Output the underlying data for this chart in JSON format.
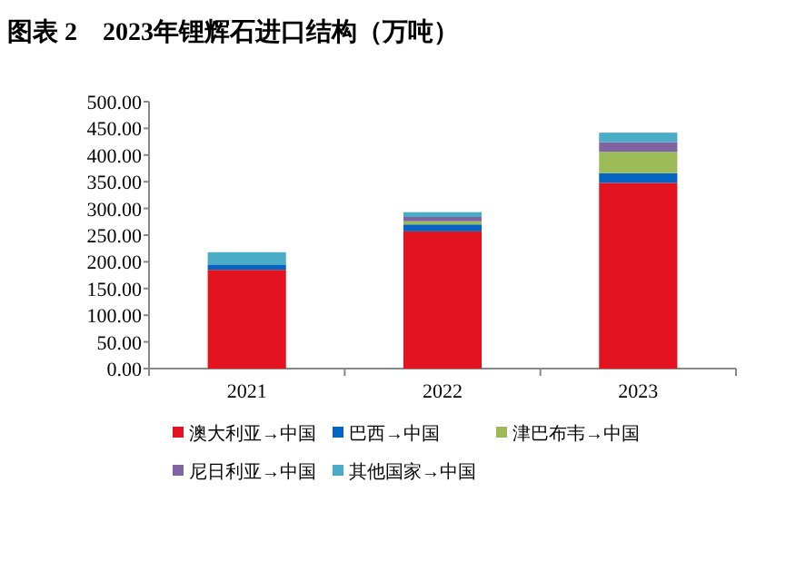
{
  "chart_data": {
    "type": "bar",
    "title": "图表 2　2023年锂辉石进口结构（万吨）",
    "stacked": true,
    "legend": "bottom",
    "grid": false,
    "categories": [
      "2021",
      "2022",
      "2023"
    ],
    "series": [
      {
        "name": "澳大利亚→中国",
        "color": "#e3141f",
        "values": [
          185,
          257,
          348
        ]
      },
      {
        "name": "巴西→中国",
        "color": "#0563c1",
        "values": [
          10,
          13,
          18
        ]
      },
      {
        "name": "津巴布韦→中国",
        "color": "#9bbb59",
        "values": [
          0,
          6,
          40
        ]
      },
      {
        "name": "尼日利亚→中国",
        "color": "#8064a2",
        "values": [
          0,
          8,
          18
        ]
      },
      {
        "name": "其他国家→中国",
        "color": "#4bacc6",
        "values": [
          23,
          9,
          18
        ]
      }
    ],
    "ylim": [
      0,
      500
    ],
    "yticks": [
      {
        "value": 0,
        "label": "0.00"
      },
      {
        "value": 50,
        "label": "50.00"
      },
      {
        "value": 100,
        "label": "100.00"
      },
      {
        "value": 150,
        "label": "150.00"
      },
      {
        "value": 200,
        "label": "200.00"
      },
      {
        "value": 250,
        "label": "250.00"
      },
      {
        "value": 300,
        "label": "300.00"
      },
      {
        "value": 350,
        "label": "350.00"
      },
      {
        "value": 400,
        "label": "400.00"
      },
      {
        "value": 450,
        "label": "450.00"
      },
      {
        "value": 500,
        "label": "500.00"
      }
    ]
  }
}
